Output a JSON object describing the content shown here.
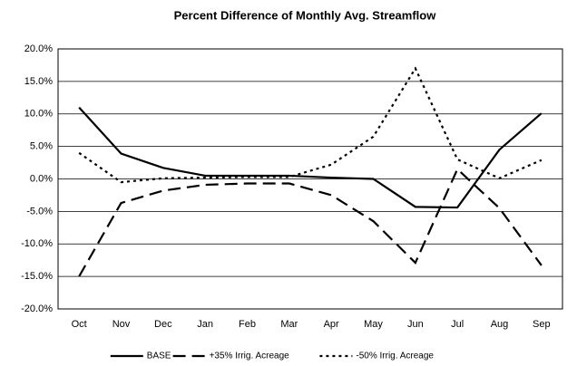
{
  "chart_data": {
    "type": "line",
    "title": "Percent Difference of Monthly Avg. Streamflow",
    "categories": [
      "Oct",
      "Nov",
      "Dec",
      "Jan",
      "Feb",
      "Mar",
      "Apr",
      "May",
      "Jun",
      "Jul",
      "Aug",
      "Sep"
    ],
    "series": [
      {
        "name": "BASE",
        "color": "#000000",
        "dash": "solid",
        "values": [
          11.0,
          3.9,
          1.7,
          0.5,
          0.5,
          0.5,
          0.2,
          0.0,
          -4.3,
          -4.4,
          4.5,
          10.1
        ]
      },
      {
        "name": "+35% Irrig. Acreage",
        "color": "#000000",
        "dash": "dashed",
        "values": [
          -15.0,
          -3.7,
          -1.8,
          -0.9,
          -0.7,
          -0.7,
          -2.5,
          -6.5,
          -12.9,
          1.5,
          -4.5,
          -13.3
        ]
      },
      {
        "name": "-50% Irrig. Acreage",
        "color": "#000000",
        "dash": "dotted",
        "values": [
          4.0,
          -0.5,
          0.1,
          0.2,
          0.3,
          0.3,
          2.2,
          6.5,
          17.0,
          3.0,
          0.1,
          2.9
        ]
      }
    ],
    "ylim": [
      -20,
      20
    ],
    "yticks": [
      {
        "value": -20,
        "label": "-20.0%"
      },
      {
        "value": -15,
        "label": "-15.0%"
      },
      {
        "value": -10,
        "label": "-10.0%"
      },
      {
        "value": -5,
        "label": "-5.0%"
      },
      {
        "value": 0,
        "label": "0.0%"
      },
      {
        "value": 5,
        "label": "5.0%"
      },
      {
        "value": 10,
        "label": "10.0%"
      },
      {
        "value": 15,
        "label": "15.0%"
      },
      {
        "value": 20,
        "label": "20.0%"
      }
    ],
    "grid": true,
    "legend": "bottom"
  }
}
